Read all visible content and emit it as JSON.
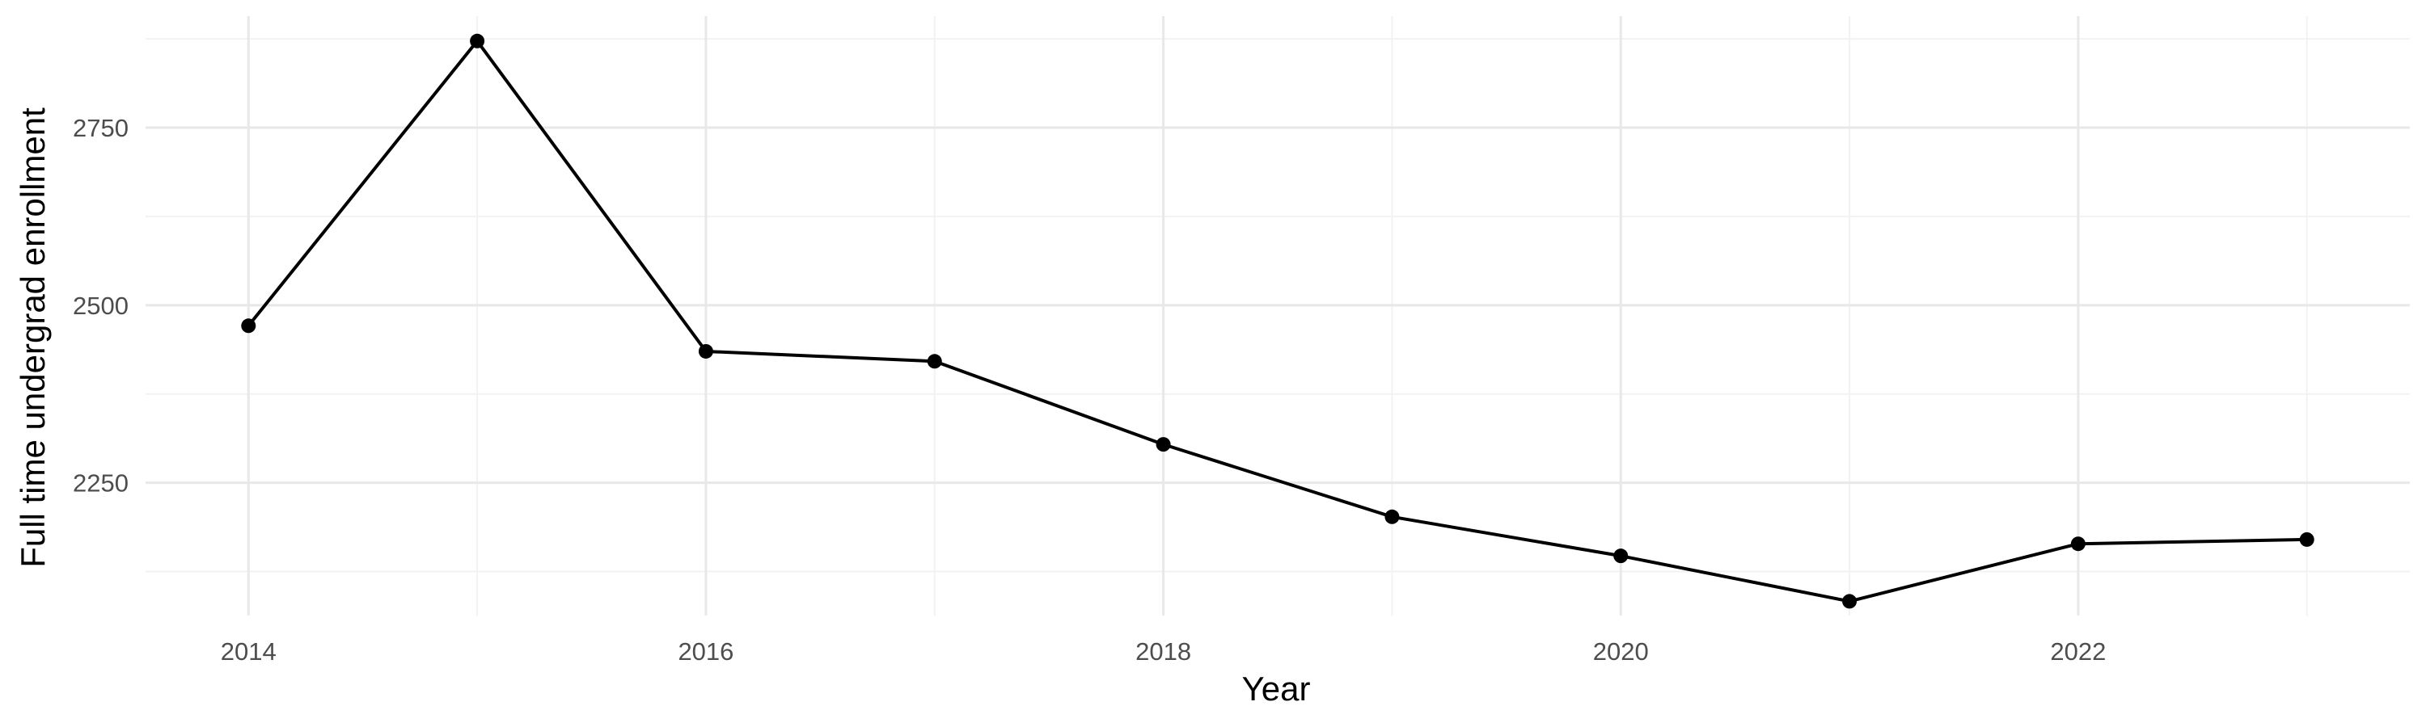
{
  "chart_data": {
    "type": "line",
    "title": "",
    "xlabel": "Year",
    "ylabel": "Full time undergrad enrollment",
    "x": [
      2014,
      2015,
      2016,
      2017,
      2018,
      2019,
      2020,
      2021,
      2022,
      2023
    ],
    "series": [
      {
        "values": [
          2471,
          2872,
          2435,
          2421,
          2304,
          2202,
          2147,
          2083,
          2164,
          2170
        ]
      }
    ],
    "xlim": [
      2013.55,
      2023.45
    ],
    "ylim": [
      2063,
      2907
    ],
    "x_ticks": [
      2014,
      2016,
      2018,
      2020,
      2022
    ],
    "x_tick_labels": [
      "2014",
      "2016",
      "2018",
      "2020",
      "2022"
    ],
    "x_minor_ticks": [
      2015,
      2017,
      2019,
      2021,
      2023
    ],
    "y_ticks": [
      2250,
      2500,
      2750
    ],
    "y_tick_labels": [
      "2250",
      "2500",
      "2750"
    ],
    "y_minor_ticks": [
      2125,
      2375,
      2625,
      2875
    ],
    "grid": true,
    "legend": "none",
    "colors": {
      "line": "#000000",
      "point": "#000000",
      "grid_major": "#e8e8e8",
      "grid_minor": "#f2f2f2",
      "tick_text": "#4d4d4d"
    }
  }
}
